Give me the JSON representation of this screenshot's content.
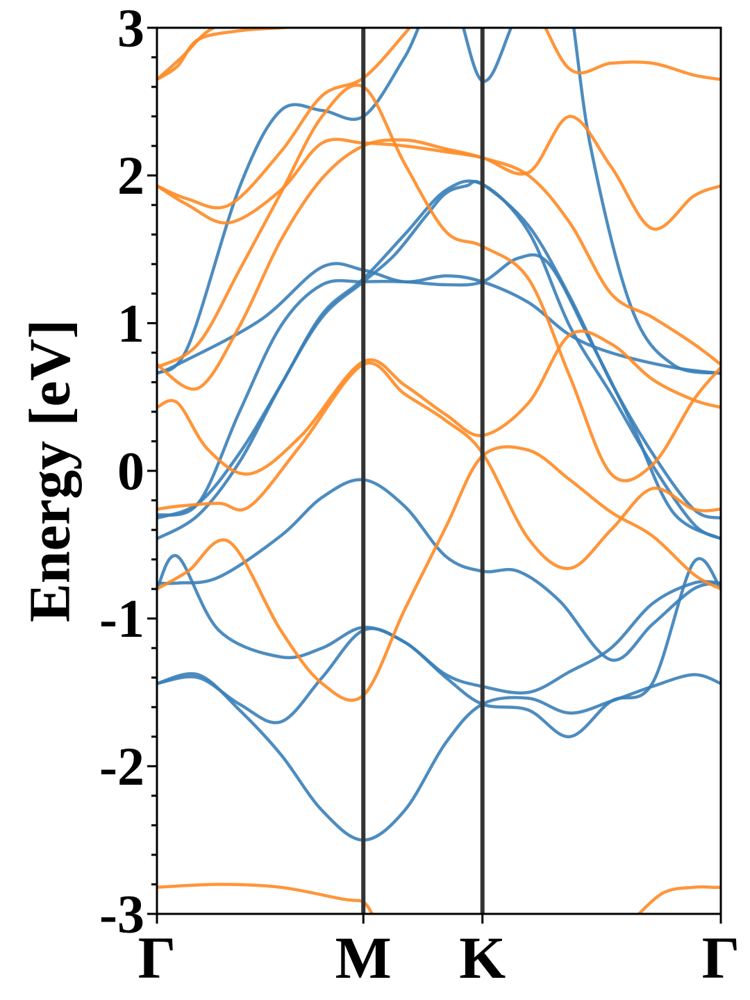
{
  "chart_data": {
    "type": "line",
    "title": "",
    "xlabel": "",
    "ylabel": "Energy [eV]",
    "ylim": [
      -3,
      3
    ],
    "y_ticks": [
      "3",
      "2",
      "1",
      "0",
      "-1",
      "-2",
      "-3"
    ],
    "y_tick_values": [
      3,
      2,
      1,
      0,
      -1,
      -2,
      -3
    ],
    "y_minor_step": 0.2,
    "k_path": [
      {
        "label": "Γ",
        "x": 0.0
      },
      {
        "label": "M",
        "x": 1.0
      },
      {
        "label": "K",
        "x": 1.577
      },
      {
        "label": "Γ",
        "x": 2.732
      }
    ],
    "grid": false,
    "legend": "none",
    "colors": {
      "blue_bands": "#3a80b8",
      "orange_bands": "#ff8a24",
      "vlines": "#333333",
      "axes": "#000000"
    },
    "series": [
      {
        "color_key": "blue_bands",
        "x": [
          0,
          0.1,
          0.5,
          0.8,
          1.0,
          1.2,
          1.4,
          1.577,
          1.8,
          2.0,
          2.2,
          2.5,
          2.732
        ],
        "y": [
          0.66,
          0.72,
          1.02,
          1.38,
          1.36,
          1.28,
          1.32,
          1.28,
          1.14,
          0.92,
          0.8,
          0.7,
          0.66
        ]
      },
      {
        "color_key": "blue_bands",
        "x": [
          0,
          0.2,
          0.4,
          0.6,
          0.8,
          1.0,
          1.2,
          1.4,
          1.577,
          1.8,
          2.0,
          2.2,
          2.4,
          2.6,
          2.732
        ],
        "y": [
          -0.32,
          -0.22,
          0.12,
          0.58,
          1.06,
          1.3,
          1.6,
          1.9,
          1.94,
          1.62,
          0.98,
          0.52,
          0.04,
          -0.36,
          -0.46
        ]
      },
      {
        "color_key": "blue_bands",
        "x": [
          0,
          0.2,
          0.4,
          0.6,
          0.8,
          1.0,
          1.15,
          1.3,
          1.4,
          1.5,
          1.577,
          1.8,
          2.0,
          2.2,
          2.4,
          2.6,
          2.732
        ],
        "y": [
          -0.46,
          -0.3,
          0.06,
          0.58,
          1.04,
          1.28,
          1.46,
          1.72,
          1.88,
          1.93,
          1.94,
          1.66,
          1.18,
          0.6,
          0.12,
          -0.26,
          -0.32
        ]
      },
      {
        "color_key": "blue_bands",
        "x": [
          0,
          0.2,
          0.4,
          0.6,
          0.8,
          1.0,
          1.2,
          1.4,
          1.577,
          1.75,
          1.9,
          2.1,
          2.3,
          2.5,
          2.732
        ],
        "y": [
          -0.3,
          -0.22,
          0.4,
          0.98,
          1.26,
          1.28,
          1.28,
          1.26,
          1.28,
          1.44,
          1.4,
          0.88,
          0.32,
          -0.28,
          -0.46
        ]
      },
      {
        "color_key": "blue_bands",
        "x": [
          0,
          0.15,
          0.4,
          0.6,
          0.8,
          1.0,
          1.2,
          1.4,
          1.577,
          1.75,
          1.95,
          2.1,
          2.3,
          2.5,
          2.732
        ],
        "y": [
          0.66,
          0.84,
          1.92,
          2.44,
          2.44,
          2.4,
          2.8,
          3.3,
          2.64,
          3.1,
          3.5,
          2.2,
          1.1,
          0.72,
          0.66
        ]
      },
      {
        "color_key": "blue_bands",
        "x": [
          0,
          0.1,
          0.3,
          0.6,
          0.8,
          1.0,
          1.2,
          1.4,
          1.577,
          1.75,
          1.95,
          2.2,
          2.4,
          2.6,
          2.732
        ],
        "y": [
          -0.76,
          -0.76,
          -0.72,
          -0.44,
          -0.18,
          -0.06,
          -0.24,
          -0.58,
          -0.68,
          -0.68,
          -0.88,
          -1.28,
          -1.04,
          -0.8,
          -0.76
        ]
      },
      {
        "color_key": "blue_bands",
        "x": [
          0,
          0.1,
          0.3,
          0.6,
          0.8,
          1.0,
          1.2,
          1.4,
          1.577,
          1.8,
          2.0,
          2.2,
          2.4,
          2.6,
          2.732
        ],
        "y": [
          -0.8,
          -0.58,
          -1.08,
          -1.26,
          -1.2,
          -1.06,
          -1.16,
          -1.38,
          -1.46,
          -1.5,
          -1.36,
          -1.2,
          -0.9,
          -0.76,
          -0.76
        ]
      },
      {
        "color_key": "blue_bands",
        "x": [
          0,
          0.2,
          0.4,
          0.6,
          0.8,
          1.0,
          1.2,
          1.4,
          1.577,
          1.8,
          2.0,
          2.2,
          2.4,
          2.6,
          2.732
        ],
        "y": [
          -1.44,
          -1.4,
          -1.58,
          -1.7,
          -1.4,
          -1.08,
          -1.16,
          -1.4,
          -1.58,
          -1.62,
          -1.8,
          -1.56,
          -1.44,
          -0.62,
          -0.8
        ]
      },
      {
        "color_key": "blue_bands",
        "x": [
          0,
          0.2,
          0.4,
          0.6,
          0.8,
          1.0,
          1.2,
          1.4,
          1.577,
          1.8,
          2.0,
          2.2,
          2.4,
          2.6,
          2.732
        ],
        "y": [
          -1.44,
          -1.38,
          -1.62,
          -1.92,
          -2.3,
          -2.5,
          -2.3,
          -1.84,
          -1.58,
          -1.54,
          -1.64,
          -1.56,
          -1.46,
          -1.38,
          -1.44
        ]
      },
      {
        "color_key": "orange_bands",
        "x": [
          0,
          0.2,
          0.4,
          0.6,
          0.8,
          1.0,
          1.2,
          1.4,
          1.577,
          1.8,
          2.0,
          2.2,
          2.4,
          2.6,
          2.732
        ],
        "y": [
          0.72,
          0.56,
          0.98,
          1.56,
          1.98,
          2.2,
          2.24,
          2.18,
          2.12,
          2.0,
          1.68,
          1.2,
          1.04,
          0.86,
          0.72
        ]
      },
      {
        "color_key": "orange_bands",
        "x": [
          0,
          0.2,
          0.4,
          0.6,
          0.8,
          1.0,
          1.2,
          1.4,
          1.577,
          1.8,
          2.0,
          2.2,
          2.4,
          2.6,
          2.732
        ],
        "y": [
          0.7,
          0.86,
          1.36,
          1.88,
          2.4,
          2.6,
          2.08,
          1.62,
          1.52,
          1.3,
          0.64,
          -0.02,
          0.04,
          0.48,
          0.7
        ]
      },
      {
        "color_key": "orange_bands",
        "x": [
          0,
          0.15,
          0.35,
          0.6,
          0.8,
          1.0,
          1.2,
          1.4,
          1.577,
          1.8,
          2.0,
          2.2,
          2.4,
          2.6,
          2.732
        ],
        "y": [
          1.93,
          1.84,
          1.8,
          2.16,
          2.54,
          2.66,
          2.96,
          3.3,
          3.4,
          3.2,
          2.72,
          2.76,
          2.76,
          2.68,
          2.65
        ]
      },
      {
        "color_key": "orange_bands",
        "x": [
          0,
          0.15,
          0.35,
          0.6,
          0.8,
          1.0,
          1.2,
          1.4,
          1.577,
          1.8,
          2.0,
          2.2,
          2.4,
          2.6,
          2.732
        ],
        "y": [
          1.93,
          1.8,
          1.68,
          1.9,
          2.22,
          2.22,
          2.2,
          2.16,
          2.12,
          2.02,
          2.4,
          2.06,
          1.64,
          1.86,
          1.93
        ]
      },
      {
        "color_key": "orange_bands",
        "x": [
          0,
          0.1,
          0.25,
          0.45,
          0.7,
          1.0,
          1.2,
          1.4,
          1.577,
          1.8,
          2.0,
          2.2,
          2.4,
          2.6,
          2.732
        ],
        "y": [
          0.43,
          0.46,
          0.14,
          -0.02,
          0.24,
          0.74,
          0.58,
          0.38,
          0.24,
          0.46,
          0.92,
          0.86,
          0.62,
          0.48,
          0.43
        ]
      },
      {
        "color_key": "orange_bands",
        "x": [
          0,
          0.1,
          0.3,
          0.45,
          0.7,
          1.0,
          1.2,
          1.4,
          1.577,
          1.8,
          2.0,
          2.2,
          2.4,
          2.6,
          2.732
        ],
        "y": [
          -0.26,
          -0.24,
          -0.22,
          -0.24,
          0.18,
          0.72,
          0.52,
          0.34,
          0.12,
          -0.46,
          -0.66,
          -0.4,
          -0.12,
          -0.26,
          -0.26
        ]
      },
      {
        "color_key": "orange_bands",
        "x": [
          0,
          0.15,
          0.35,
          0.6,
          0.8,
          1.0,
          1.2,
          1.4,
          1.577,
          1.8,
          2.0,
          2.2,
          2.4,
          2.6,
          2.732
        ],
        "y": [
          -0.8,
          -0.68,
          -0.48,
          -1.08,
          -1.44,
          -1.52,
          -0.94,
          -0.38,
          0.1,
          0.14,
          -0.06,
          -0.28,
          -0.44,
          -0.7,
          -0.8
        ]
      },
      {
        "color_key": "orange_bands",
        "x": [
          0,
          0.3,
          0.6,
          0.9,
          1.0,
          1.05
        ],
        "y": [
          -2.82,
          -2.8,
          -2.82,
          -2.9,
          -2.92,
          -3.02
        ]
      },
      {
        "color_key": "orange_bands",
        "x": [
          2.3,
          2.45,
          2.6,
          2.7,
          2.732
        ],
        "y": [
          -3.05,
          -2.86,
          -2.82,
          -2.82,
          -2.82
        ]
      },
      {
        "color_key": "orange_bands",
        "x": [
          0,
          0.1,
          0.2,
          0.4,
          0.6,
          0.8
        ],
        "y": [
          2.65,
          2.74,
          2.92,
          2.98,
          3.0,
          3.02
        ]
      },
      {
        "color_key": "orange_bands",
        "x": [
          0,
          0.12,
          0.25,
          0.4
        ],
        "y": [
          2.65,
          2.8,
          2.98,
          3.06
        ]
      }
    ]
  }
}
